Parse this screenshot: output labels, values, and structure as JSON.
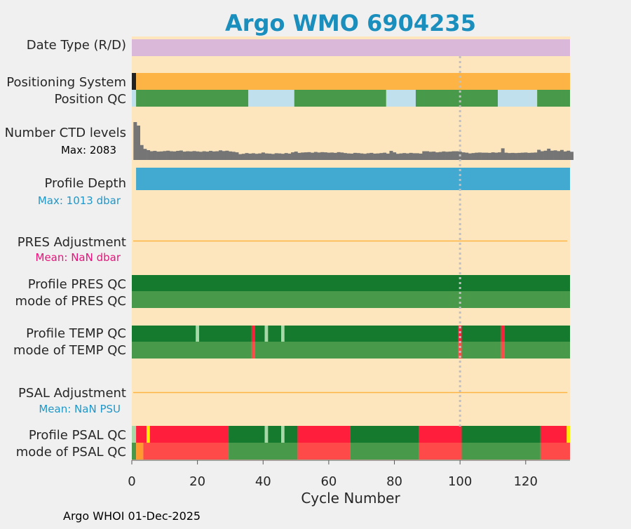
{
  "chart_data": {
    "type": "table",
    "title": "Argo WMO 6904235",
    "xlabel": "Cycle Number",
    "xlim": [
      0,
      133.5
    ],
    "xticks": [
      0,
      20,
      40,
      60,
      80,
      100,
      120
    ],
    "footer": "Argo WHOI 01-Dec-2025",
    "highlight_cycle": 100,
    "colors": {
      "title": "#1a8fbd",
      "plot_bg": "#fde6bd",
      "page_bg": "#f0f0f0",
      "date_type": "#d9b8d9",
      "positioning": "#fdb444",
      "qc_good": "#49994a",
      "qc_dark_good": "#157a2e",
      "qc_light": "#c0e0ee",
      "qc_pale_green": "#a8d8a8",
      "qc_bad": "#ff1f3d",
      "qc_bad_light": "#ff4a4a",
      "qc_yellow": "#ffee00",
      "qc_orange": "#ff9a30",
      "ctd_bars": "#757575",
      "profile_depth": "#42a9d0",
      "adjust_line": "#fdb444",
      "pres_mean_text": "#e8137a",
      "depth_text": "#2097c8",
      "psal_mean_text": "#2097c8",
      "dotted": "#c0c0c0"
    },
    "rows": {
      "date_type": {
        "label": "Date Type (R/D)"
      },
      "positioning": {
        "label": "Positioning System"
      },
      "position_qc": {
        "label": "Position QC"
      },
      "ctd": {
        "label": "Number CTD levels",
        "annotation": "Max: 2083"
      },
      "profile_depth": {
        "label": "Profile Depth",
        "annotation": "Max: 1013 dbar"
      },
      "pres_adj": {
        "label": "PRES Adjustment",
        "annotation": "Mean:  NaN dbar"
      },
      "pres_qc": {
        "label": "Profile PRES QC"
      },
      "pres_mode": {
        "label": "mode of PRES QC"
      },
      "temp_qc": {
        "label": "Profile TEMP QC"
      },
      "temp_mode": {
        "label": "mode of TEMP QC"
      },
      "psal_adj": {
        "label": "PSAL Adjustment",
        "annotation": "Mean:  NaN PSU"
      },
      "psal_qc": {
        "label": "Profile PSAL QC"
      },
      "psal_mode": {
        "label": "mode of PSAL QC"
      }
    },
    "series": {
      "date_type_segments": [
        [
          0,
          133.5,
          "date_type"
        ]
      ],
      "positioning_segments": [
        [
          0,
          1.3,
          "#222222"
        ],
        [
          1.3,
          133.5,
          "positioning"
        ]
      ],
      "position_qc_segments": [
        [
          0,
          1.3,
          "qc_light"
        ],
        [
          1.3,
          35.5,
          "qc_good"
        ],
        [
          35.5,
          49.5,
          "qc_light"
        ],
        [
          49.5,
          77.5,
          "qc_good"
        ],
        [
          77.5,
          86.5,
          "qc_light"
        ],
        [
          86.5,
          111.5,
          "qc_good"
        ],
        [
          111.5,
          123.5,
          "qc_light"
        ],
        [
          123.5,
          133.5,
          "qc_good"
        ]
      ],
      "profile_depth_segments": [
        [
          1.3,
          133.5,
          "profile_depth"
        ]
      ],
      "pres_qc_segments": [
        [
          0,
          133.5,
          "qc_dark_good"
        ]
      ],
      "pres_mode_segments": [
        [
          0,
          133.5,
          "qc_good"
        ]
      ],
      "temp_qc_segments": [
        [
          0,
          19.5,
          "qc_dark_good"
        ],
        [
          19.5,
          20.5,
          "qc_pale_green"
        ],
        [
          20.5,
          36.5,
          "qc_dark_good"
        ],
        [
          36.5,
          37.5,
          "qc_bad"
        ],
        [
          37.5,
          40.5,
          "qc_dark_good"
        ],
        [
          40.5,
          41.5,
          "qc_pale_green"
        ],
        [
          41.5,
          45.5,
          "qc_dark_good"
        ],
        [
          45.5,
          46.5,
          "qc_pale_green"
        ],
        [
          46.5,
          99.5,
          "qc_dark_good"
        ],
        [
          99.5,
          100.5,
          "qc_bad"
        ],
        [
          100.5,
          112.5,
          "qc_dark_good"
        ],
        [
          112.5,
          113.5,
          "qc_bad"
        ],
        [
          113.5,
          133.5,
          "qc_dark_good"
        ]
      ],
      "temp_mode_segments": [
        [
          0,
          36.5,
          "qc_good"
        ],
        [
          36.5,
          37.5,
          "qc_bad_light"
        ],
        [
          37.5,
          99.5,
          "qc_good"
        ],
        [
          99.5,
          100.5,
          "qc_bad_light"
        ],
        [
          100.5,
          112.5,
          "qc_good"
        ],
        [
          112.5,
          113.5,
          "qc_bad_light"
        ],
        [
          113.5,
          133.5,
          "qc_good"
        ]
      ],
      "psal_qc_segments": [
        [
          0,
          1.3,
          "qc_pale_green"
        ],
        [
          1.3,
          4.5,
          "qc_bad"
        ],
        [
          4.5,
          5.5,
          "qc_yellow"
        ],
        [
          5.5,
          29.5,
          "qc_bad"
        ],
        [
          29.5,
          40.5,
          "qc_dark_good"
        ],
        [
          40.5,
          41.5,
          "qc_pale_green"
        ],
        [
          41.5,
          45.5,
          "qc_dark_good"
        ],
        [
          45.5,
          46.5,
          "qc_pale_green"
        ],
        [
          46.5,
          50.5,
          "qc_dark_good"
        ],
        [
          50.5,
          66.5,
          "qc_bad"
        ],
        [
          66.5,
          87.5,
          "qc_dark_good"
        ],
        [
          87.5,
          100.5,
          "qc_bad"
        ],
        [
          100.5,
          124.5,
          "qc_dark_good"
        ],
        [
          124.5,
          132.5,
          "qc_bad"
        ],
        [
          132.5,
          133.5,
          "qc_yellow"
        ]
      ],
      "psal_mode_segments": [
        [
          0,
          1.3,
          "qc_good"
        ],
        [
          1.3,
          3.5,
          "qc_orange"
        ],
        [
          3.5,
          29.5,
          "qc_bad_light"
        ],
        [
          29.5,
          50.5,
          "qc_good"
        ],
        [
          50.5,
          66.5,
          "qc_bad_light"
        ],
        [
          66.5,
          87.5,
          "qc_good"
        ],
        [
          87.5,
          100.5,
          "qc_bad_light"
        ],
        [
          100.5,
          124.5,
          "qc_good"
        ],
        [
          124.5,
          133.5,
          "qc_bad_light"
        ]
      ],
      "ctd_levels": [
        2083,
        1890,
        820,
        610,
        540,
        480,
        500,
        460,
        470,
        490,
        510,
        480,
        470,
        500,
        520,
        460,
        480,
        470,
        490,
        470,
        450,
        480,
        460,
        500,
        470,
        480,
        530,
        490,
        510,
        470,
        450,
        420,
        320,
        340,
        380,
        350,
        370,
        340,
        360,
        410,
        360,
        350,
        330,
        370,
        360,
        340,
        380,
        350,
        420,
        460,
        390,
        410,
        420,
        430,
        400,
        440,
        410,
        430,
        420,
        400,
        410,
        390,
        430,
        410,
        380,
        360,
        350,
        390,
        380,
        360,
        340,
        370,
        390,
        350,
        360,
        380,
        400,
        350,
        500,
        420,
        340,
        360,
        380,
        360,
        390,
        370,
        370,
        350,
        480,
        480,
        450,
        460,
        420,
        440,
        470,
        450,
        460,
        480,
        480,
        460,
        420,
        400,
        360,
        380,
        400,
        410,
        400,
        400,
        390,
        420,
        400,
        420,
        640,
        400,
        380,
        390,
        380,
        390,
        400,
        410,
        390,
        400,
        410,
        560,
        480,
        510,
        620,
        510,
        530,
        490,
        550,
        470,
        510,
        450
      ],
      "pres_adjustment_mean": "NaN",
      "psal_adjustment_mean": "NaN"
    }
  }
}
